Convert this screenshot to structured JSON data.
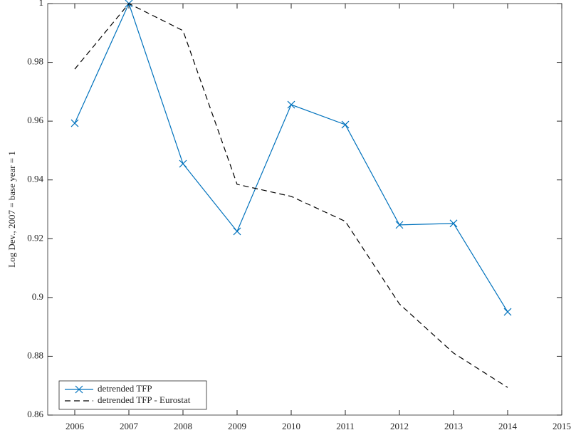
{
  "chart_data": {
    "type": "line",
    "y_label": "Log Dev., 2007 = base year = 1",
    "x": [
      2006,
      2007,
      2008,
      2009,
      2010,
      2011,
      2012,
      2013,
      2014
    ],
    "series": [
      {
        "name": "detrended TFP",
        "color": "#0072bd",
        "linestyle": "solid",
        "marker": "x",
        "values": [
          0.9593,
          1.0,
          0.9455,
          0.9225,
          0.9656,
          0.9588,
          0.9247,
          0.9252,
          0.8951
        ]
      },
      {
        "name": "detrended TFP - Eurostat",
        "color": "#000000",
        "linestyle": "dashed",
        "marker": "none",
        "values": [
          0.9777,
          1.0,
          0.9908,
          0.9385,
          0.9344,
          0.9259,
          0.8978,
          0.8811,
          0.8694
        ]
      }
    ],
    "xlim": [
      2005.5,
      2015
    ],
    "xticks": [
      2006,
      2007,
      2008,
      2009,
      2010,
      2011,
      2012,
      2013,
      2014,
      2015
    ],
    "ylim": [
      0.86,
      1
    ],
    "yticks": [
      0.86,
      0.88,
      0.9,
      0.92,
      0.94,
      0.96,
      0.98,
      1
    ],
    "grid": false,
    "legend": "lower left"
  }
}
